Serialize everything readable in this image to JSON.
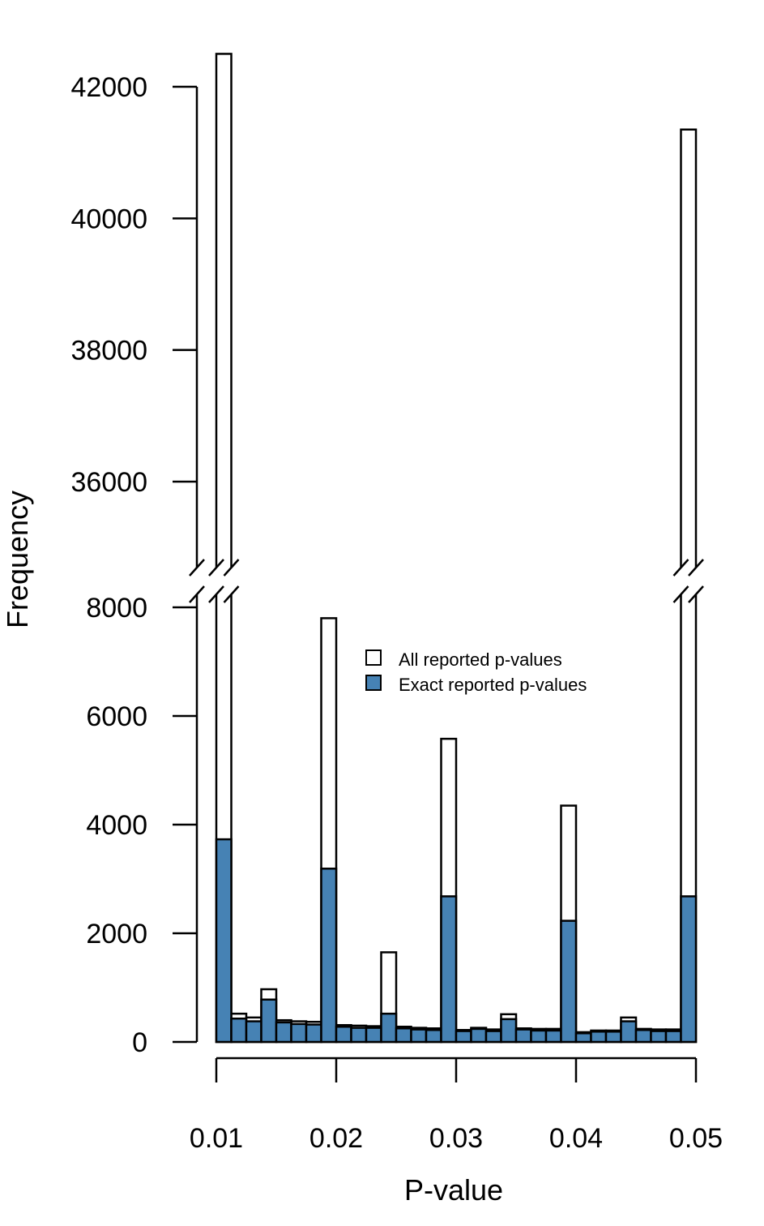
{
  "chart_data": {
    "type": "bar",
    "xlabel": "P-value",
    "ylabel": "Frequency",
    "x_ticks": [
      "0.01",
      "0.02",
      "0.03",
      "0.04",
      "0.05"
    ],
    "y_ticks_lower": [
      "0",
      "2000",
      "4000",
      "6000",
      "8000"
    ],
    "y_ticks_upper": [
      "36000",
      "38000",
      "40000",
      "42000"
    ],
    "y_axis_break": [
      8000,
      34500
    ],
    "xlim": [
      0.01,
      0.05
    ],
    "bin_width": 0.00125,
    "bin_starts": [
      0.01,
      0.01125,
      0.0125,
      0.01375,
      0.015,
      0.01625,
      0.0175,
      0.01875,
      0.02,
      0.02125,
      0.0225,
      0.02375,
      0.025,
      0.02625,
      0.0275,
      0.02875,
      0.03,
      0.03125,
      0.0325,
      0.03375,
      0.035,
      0.03625,
      0.0375,
      0.03875,
      0.04,
      0.04125,
      0.0425,
      0.04375,
      0.045,
      0.04625,
      0.0475,
      0.04875
    ],
    "series": [
      {
        "name": "All reported p-values",
        "color": "#ffffff",
        "values": [
          42500,
          520,
          450,
          970,
          400,
          380,
          370,
          7800,
          310,
          300,
          290,
          1650,
          280,
          260,
          250,
          5580,
          220,
          260,
          230,
          510,
          250,
          240,
          240,
          4350,
          180,
          210,
          210,
          450,
          240,
          230,
          230,
          41350
        ]
      },
      {
        "name": "Exact reported p-values",
        "color": "#4682b4",
        "values": [
          3730,
          430,
          380,
          780,
          360,
          330,
          320,
          3190,
          280,
          260,
          260,
          520,
          250,
          230,
          220,
          2680,
          200,
          240,
          200,
          420,
          230,
          210,
          210,
          2230,
          160,
          190,
          190,
          380,
          220,
          200,
          200,
          2680
        ]
      }
    ],
    "legend_placement": "top-center",
    "grid": false
  }
}
